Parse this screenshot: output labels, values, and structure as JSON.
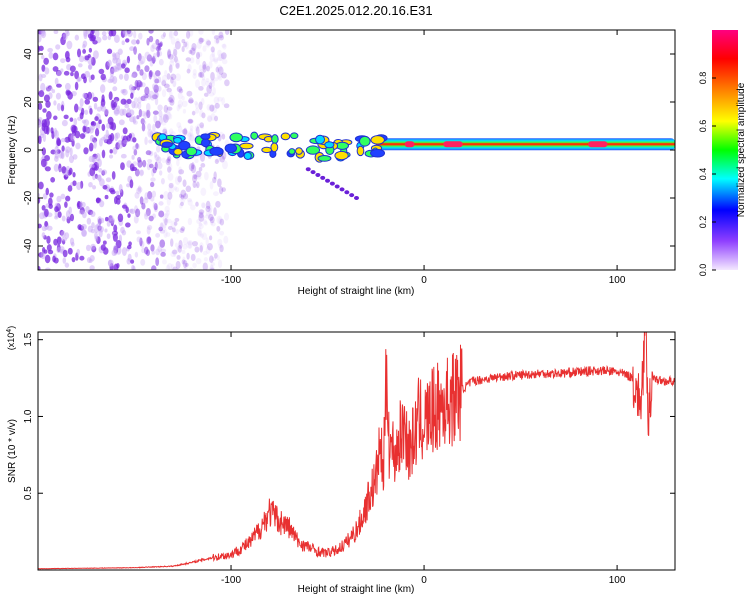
{
  "title": "C2E1.2025.012.20.16.E31",
  "chart_data": [
    {
      "type": "heatmap",
      "title": "C2E1.2025.012.20.16.E31",
      "xlabel": "Height of straight line (km)",
      "ylabel": "Frequency (Hz)",
      "xlim": [
        -200,
        130
      ],
      "ylim": [
        -50,
        50
      ],
      "xticks": [
        -100,
        0,
        100
      ],
      "yticks": [
        -40,
        -20,
        0,
        20,
        40
      ],
      "colorbar": {
        "label": "Normalized spectral amplitude",
        "range": [
          0,
          1
        ],
        "ticks": [
          "0.0",
          "0.2",
          "0.4",
          "0.6",
          "0.8"
        ],
        "colors": [
          "#f0e0ff",
          "#8000ff",
          "#0000ff",
          "#00ffff",
          "#00ff00",
          "#ffff00",
          "#ff8000",
          "#ff0000",
          "#ff0080"
        ]
      },
      "features": {
        "noise_region_x": [
          -200,
          -110
        ],
        "signal_band_hz": 2,
        "weak_branch": {
          "x": [
            -60,
            -35
          ],
          "y": [
            -8,
            -20
          ]
        }
      }
    },
    {
      "type": "line",
      "xlabel": "Height of straight line (km)",
      "ylabel": "SNR (10 * v/v)",
      "y_multiplier": "(x10^4)",
      "xlim": [
        -200,
        130
      ],
      "ylim": [
        0,
        15500
      ],
      "xticks": [
        -100,
        0,
        100
      ],
      "yticks": [
        {
          "value": 5000,
          "label": "0.5"
        },
        {
          "value": 10000,
          "label": "1.0"
        },
        {
          "value": 15000,
          "label": "1.5"
        }
      ],
      "color": "#e83030",
      "series": [
        {
          "x": [
            -200,
            -150,
            -130,
            -120,
            -110,
            -100,
            -95,
            -90,
            -85,
            -80,
            -75,
            -70,
            -65,
            -60,
            -55,
            -50,
            -45,
            -40,
            -35,
            -32,
            -30,
            -28,
            -25,
            -23,
            -21,
            -20,
            -19,
            -18,
            -17,
            -15,
            -12,
            -10,
            -8,
            -5,
            -3,
            0,
            5,
            10,
            15,
            20,
            25,
            30,
            40,
            50,
            60,
            70,
            80,
            90,
            100,
            105,
            108,
            110,
            112,
            114,
            115,
            116,
            118,
            120,
            125,
            130
          ],
          "y": [
            80,
            150,
            250,
            500,
            800,
            1000,
            1400,
            1800,
            2700,
            3800,
            3200,
            2800,
            1800,
            1500,
            1200,
            1100,
            1300,
            1800,
            2600,
            3400,
            4200,
            5000,
            5800,
            8000,
            6500,
            10800,
            13300,
            7800,
            8200,
            7500,
            8800,
            9500,
            7800,
            8600,
            9800,
            9600,
            10400,
            10800,
            11200,
            11800,
            12300,
            12400,
            12600,
            12700,
            12800,
            12800,
            12900,
            13000,
            12900,
            12700,
            12500,
            11800,
            10600,
            14000,
            15500,
            9200,
            12800,
            12400,
            12300,
            12300
          ]
        }
      ]
    }
  ]
}
